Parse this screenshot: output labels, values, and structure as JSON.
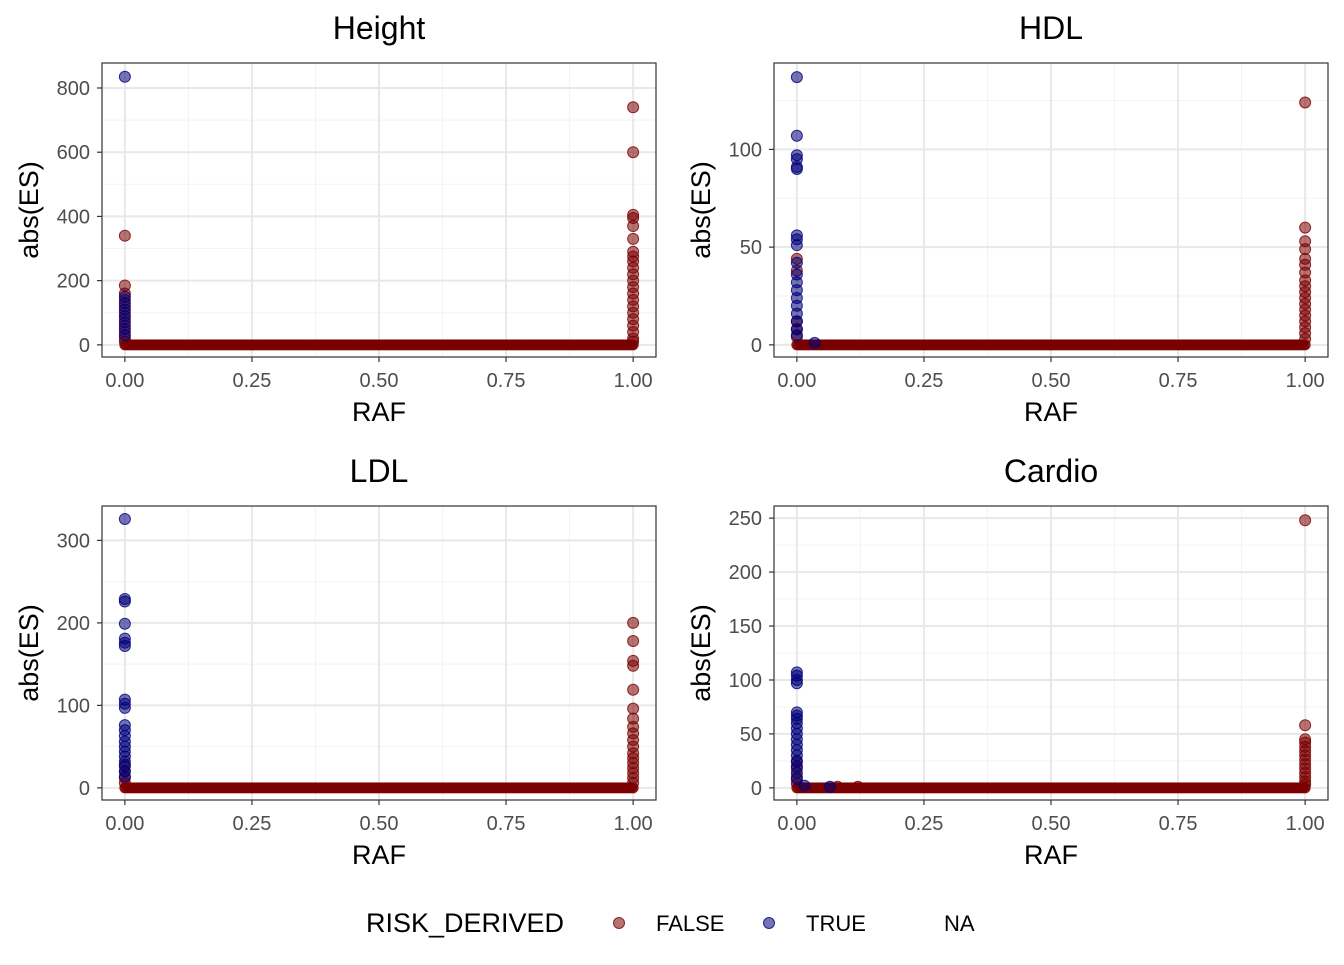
{
  "colors": {
    "false_color": "#7a0000",
    "true_color": "#00007a",
    "grid_major": "#e8e8e8",
    "grid_minor": "#f3f3f3",
    "panel_border": "#333333",
    "tick_text": "#4d4d4d"
  },
  "legend": {
    "title": "RISK_DERIVED",
    "entries": [
      "FALSE",
      "TRUE",
      "NA"
    ],
    "position": "bottom"
  },
  "chart_data": [
    {
      "type": "scatter",
      "title": "Height",
      "xlabel": "RAF",
      "ylabel": "abs(ES)",
      "xlim": [
        0,
        1
      ],
      "ylim": [
        0,
        840
      ],
      "xticks": [
        0,
        0.25,
        0.5,
        0.75,
        1
      ],
      "xtick_labels": [
        "0.00",
        "0.25",
        "0.50",
        "0.75",
        "1.00"
      ],
      "yticks": [
        0,
        200,
        400,
        600,
        800
      ],
      "ytick_labels": [
        "0",
        "200",
        "400",
        "600",
        "800"
      ],
      "grid": true,
      "series": [
        {
          "name": "FALSE",
          "points": [
            [
              0,
              340
            ],
            [
              0,
              185
            ],
            [
              0,
              160
            ],
            [
              0,
              140
            ],
            [
              0,
              120
            ],
            [
              0,
              100
            ],
            [
              0,
              80
            ],
            [
              0,
              60
            ],
            [
              0,
              40
            ],
            [
              0,
              20
            ],
            [
              0,
              10
            ],
            [
              1,
              740
            ],
            [
              1,
              600
            ],
            [
              1,
              405
            ],
            [
              1,
              395
            ],
            [
              1,
              370
            ],
            [
              1,
              330
            ],
            [
              1,
              290
            ],
            [
              1,
              275
            ],
            [
              1,
              260
            ],
            [
              1,
              240
            ],
            [
              1,
              220
            ],
            [
              1,
              200
            ],
            [
              1,
              180
            ],
            [
              1,
              160
            ],
            [
              1,
              140
            ],
            [
              1,
              120
            ],
            [
              1,
              100
            ],
            [
              1,
              80
            ],
            [
              1,
              60
            ],
            [
              1,
              40
            ],
            [
              1,
              20
            ],
            [
              1,
              10
            ]
          ]
        },
        {
          "name": "TRUE",
          "points": [
            [
              0,
              835
            ],
            [
              0,
              150
            ],
            [
              0,
              130
            ],
            [
              0,
              110
            ],
            [
              0,
              90
            ],
            [
              0,
              70
            ],
            [
              0,
              50
            ],
            [
              0,
              30
            ]
          ]
        }
      ]
    },
    {
      "type": "scatter",
      "title": "HDL",
      "xlabel": "RAF",
      "ylabel": "abs(ES)",
      "xlim": [
        0,
        1
      ],
      "ylim": [
        0,
        138
      ],
      "xticks": [
        0,
        0.25,
        0.5,
        0.75,
        1
      ],
      "xtick_labels": [
        "0.00",
        "0.25",
        "0.50",
        "0.75",
        "1.00"
      ],
      "yticks": [
        0,
        50,
        100
      ],
      "ytick_labels": [
        "0",
        "50",
        "100"
      ],
      "grid": true,
      "series": [
        {
          "name": "FALSE",
          "points": [
            [
              0,
              44
            ],
            [
              0,
              38
            ],
            [
              0,
              12
            ],
            [
              0,
              8
            ],
            [
              0,
              4
            ],
            [
              1,
              124
            ],
            [
              1,
              60
            ],
            [
              1,
              53
            ],
            [
              1,
              49
            ],
            [
              1,
              44
            ],
            [
              1,
              41
            ],
            [
              1,
              37
            ],
            [
              1,
              33
            ],
            [
              1,
              30
            ],
            [
              1,
              27
            ],
            [
              1,
              24
            ],
            [
              1,
              21
            ],
            [
              1,
              18
            ],
            [
              1,
              15
            ],
            [
              1,
              12
            ],
            [
              1,
              9
            ],
            [
              1,
              6
            ],
            [
              1,
              3
            ]
          ]
        },
        {
          "name": "TRUE",
          "points": [
            [
              0,
              137
            ],
            [
              0,
              107
            ],
            [
              0,
              97
            ],
            [
              0,
              95
            ],
            [
              0,
              91
            ],
            [
              0,
              90
            ],
            [
              0,
              56
            ],
            [
              0,
              54
            ],
            [
              0,
              51
            ],
            [
              0,
              42
            ],
            [
              0,
              36
            ],
            [
              0,
              32
            ],
            [
              0,
              28
            ],
            [
              0,
              24
            ],
            [
              0,
              20
            ],
            [
              0,
              16
            ],
            [
              0,
              12
            ],
            [
              0,
              8
            ],
            [
              0,
              5
            ],
            [
              0.035,
              1
            ]
          ]
        }
      ]
    },
    {
      "type": "scatter",
      "title": "LDL",
      "xlabel": "RAF",
      "ylabel": "abs(ES)",
      "xlim": [
        0,
        1
      ],
      "ylim": [
        0,
        327
      ],
      "xticks": [
        0,
        0.25,
        0.5,
        0.75,
        1
      ],
      "xtick_labels": [
        "0.00",
        "0.25",
        "0.50",
        "0.75",
        "1.00"
      ],
      "yticks": [
        0,
        100,
        200,
        300
      ],
      "ytick_labels": [
        "0",
        "100",
        "200",
        "300"
      ],
      "grid": true,
      "series": [
        {
          "name": "FALSE",
          "points": [
            [
              0,
              28
            ],
            [
              0,
              20
            ],
            [
              0,
              12
            ],
            [
              0,
              6
            ],
            [
              1,
              200
            ],
            [
              1,
              178
            ],
            [
              1,
              154
            ],
            [
              1,
              148
            ],
            [
              1,
              119
            ],
            [
              1,
              96
            ],
            [
              1,
              84
            ],
            [
              1,
              74
            ],
            [
              1,
              66
            ],
            [
              1,
              58
            ],
            [
              1,
              50
            ],
            [
              1,
              42
            ],
            [
              1,
              36
            ],
            [
              1,
              30
            ],
            [
              1,
              24
            ],
            [
              1,
              18
            ],
            [
              1,
              12
            ],
            [
              1,
              6
            ]
          ]
        },
        {
          "name": "TRUE",
          "points": [
            [
              0,
              326
            ],
            [
              0,
              229
            ],
            [
              0,
              226
            ],
            [
              0,
              199
            ],
            [
              0,
              181
            ],
            [
              0,
              176
            ],
            [
              0,
              172
            ],
            [
              0,
              107
            ],
            [
              0,
              102
            ],
            [
              0,
              97
            ],
            [
              0,
              76
            ],
            [
              0,
              70
            ],
            [
              0,
              63
            ],
            [
              0,
              56
            ],
            [
              0,
              50
            ],
            [
              0,
              44
            ],
            [
              0,
              38
            ],
            [
              0,
              32
            ],
            [
              0,
              26
            ],
            [
              0,
              20
            ],
            [
              0,
              14
            ]
          ]
        }
      ]
    },
    {
      "type": "scatter",
      "title": "Cardio",
      "xlabel": "RAF",
      "ylabel": "abs(ES)",
      "xlim": [
        0,
        1
      ],
      "ylim": [
        0,
        250
      ],
      "xticks": [
        0,
        0.25,
        0.5,
        0.75,
        1
      ],
      "xtick_labels": [
        "0.00",
        "0.25",
        "0.50",
        "0.75",
        "1.00"
      ],
      "yticks": [
        0,
        50,
        100,
        150,
        200,
        250
      ],
      "ytick_labels": [
        "0",
        "50",
        "100",
        "150",
        "200",
        "250"
      ],
      "grid": true,
      "series": [
        {
          "name": "FALSE",
          "points": [
            [
              0,
              24
            ],
            [
              0,
              18
            ],
            [
              0,
              10
            ],
            [
              0,
              4
            ],
            [
              0.08,
              1
            ],
            [
              0.12,
              1
            ],
            [
              1,
              248
            ],
            [
              1,
              58
            ],
            [
              1,
              45
            ],
            [
              1,
              42
            ],
            [
              1,
              38
            ],
            [
              1,
              34
            ],
            [
              1,
              30
            ],
            [
              1,
              26
            ],
            [
              1,
              22
            ],
            [
              1,
              18
            ],
            [
              1,
              14
            ],
            [
              1,
              10
            ],
            [
              1,
              6
            ],
            [
              1,
              3
            ]
          ]
        },
        {
          "name": "TRUE",
          "points": [
            [
              0,
              107
            ],
            [
              0,
              104
            ],
            [
              0,
              100
            ],
            [
              0,
              97
            ],
            [
              0,
              70
            ],
            [
              0,
              67
            ],
            [
              0,
              64
            ],
            [
              0,
              60
            ],
            [
              0,
              55
            ],
            [
              0,
              50
            ],
            [
              0,
              45
            ],
            [
              0,
              40
            ],
            [
              0,
              35
            ],
            [
              0,
              30
            ],
            [
              0,
              25
            ],
            [
              0,
              20
            ],
            [
              0,
              14
            ],
            [
              0,
              8
            ],
            [
              0.015,
              2
            ],
            [
              0.065,
              1
            ]
          ]
        }
      ]
    }
  ]
}
